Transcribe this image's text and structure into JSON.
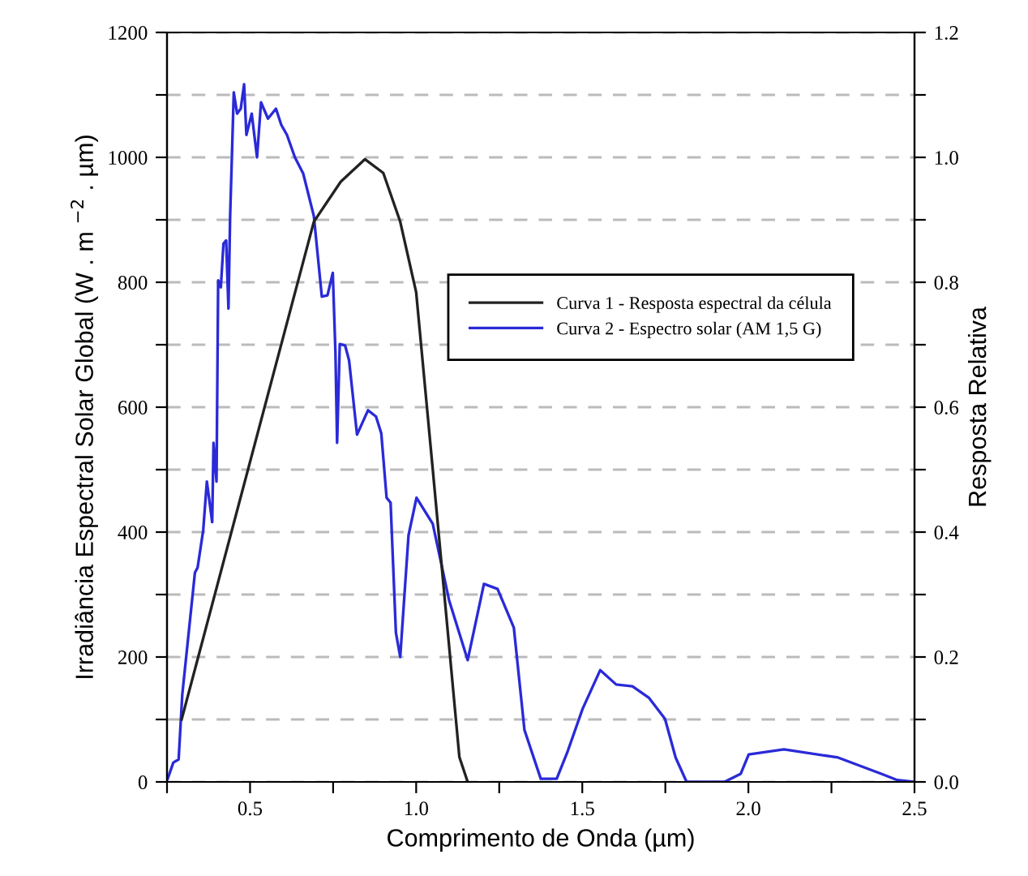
{
  "chart_data": {
    "type": "line",
    "xlabel": "Comprimento de Onda (µm)",
    "ylabel": "Irradiância Espectral Solar Global (W . m $^{−2}$ . µm)",
    "y2label": "Resposta Relativa",
    "xlim": [
      0.25,
      2.5
    ],
    "ylim": [
      0,
      1200
    ],
    "y2lim": [
      0,
      1.2
    ],
    "xticks": [
      {
        "value": 0.25,
        "label": null
      },
      0.5,
      {
        "value": 0.75,
        "label": null
      },
      {
        "value": 1.0,
        "label": "1.0"
      },
      {
        "value": 1.25,
        "label": null
      },
      1.5,
      {
        "value": 1.75,
        "label": null
      },
      {
        "value": 2.0,
        "label": "2.0"
      },
      {
        "value": 2.25,
        "label": null
      },
      2.5
    ],
    "yticks": [
      0,
      {
        "value": 100,
        "label": null
      },
      200,
      {
        "value": 300,
        "label": null
      },
      400,
      {
        "value": 500,
        "label": null
      },
      600,
      {
        "value": 700,
        "label": null
      },
      800,
      {
        "value": 900,
        "label": null
      },
      1000,
      {
        "value": 1100,
        "label": null
      },
      1200
    ],
    "y2ticks": [
      {
        "value": 0,
        "label": "0.0"
      },
      {
        "value": 0.1,
        "label": null
      },
      0.2,
      {
        "value": 0.3,
        "label": null
      },
      0.4,
      {
        "value": 0.5,
        "label": null
      },
      0.6,
      {
        "value": 0.7,
        "label": null
      },
      0.8,
      {
        "value": 0.9,
        "label": null
      },
      {
        "value": 1.0,
        "label": "1.0"
      },
      {
        "value": 1.1,
        "label": null
      },
      1.2
    ],
    "grid": "y",
    "legend": "right",
    "marker": "none",
    "line_style": "solid",
    "series": [
      {
        "name": "Curva 1 - Resposta espectral da célula",
        "color": "#222222",
        "axis": "y2",
        "x": [
          0.294,
          0.692,
          0.773,
          0.846,
          0.901,
          0.952,
          1.0,
          1.05,
          1.13,
          1.155
        ],
        "values": [
          0.1,
          0.897,
          0.961,
          0.997,
          0.975,
          0.897,
          0.784,
          0.5,
          0.04,
          0
        ]
      },
      {
        "name": "Curva 2 - Espectro solar (AM 1,5 G)",
        "color": "#2a2ad8",
        "axis": "y",
        "x": [
          0.252,
          0.269,
          0.285,
          0.296,
          0.334,
          0.342,
          0.359,
          0.37,
          0.386,
          0.39,
          0.399,
          0.404,
          0.412,
          0.42,
          0.428,
          0.435,
          0.44,
          0.451,
          0.461,
          0.472,
          0.482,
          0.489,
          0.505,
          0.521,
          0.533,
          0.554,
          0.578,
          0.594,
          0.611,
          0.635,
          0.66,
          0.692,
          0.716,
          0.733,
          0.749,
          0.757,
          0.762,
          0.77,
          0.786,
          0.798,
          0.822,
          0.855,
          0.879,
          0.895,
          0.911,
          0.923,
          0.939,
          0.952,
          0.977,
          1.001,
          1.05,
          1.099,
          1.155,
          1.204,
          1.245,
          1.294,
          1.326,
          1.375,
          1.423,
          1.456,
          1.501,
          1.554,
          1.602,
          1.651,
          1.7,
          1.749,
          1.781,
          1.814,
          1.928,
          1.977,
          2.001,
          2.107,
          2.27,
          2.4,
          2.448,
          2.5
        ],
        "values": [
          5,
          31,
          36,
          140,
          335,
          343,
          403,
          481,
          416,
          543,
          481,
          803,
          792,
          862,
          867,
          758,
          906,
          1104,
          1070,
          1078,
          1117,
          1036,
          1070,
          1000,
          1088,
          1062,
          1078,
          1052,
          1036,
          1000,
          974,
          906,
          777,
          779,
          815,
          688,
          543,
          701,
          699,
          675,
          556,
          595,
          585,
          558,
          455,
          447,
          239,
          200,
          395,
          455,
          413,
          291,
          195,
          317,
          309,
          247,
          83,
          5,
          5,
          49,
          117,
          179,
          156,
          153,
          135,
          101,
          39,
          0,
          0,
          13,
          44,
          52,
          39,
          13,
          3,
          0
        ]
      }
    ]
  }
}
